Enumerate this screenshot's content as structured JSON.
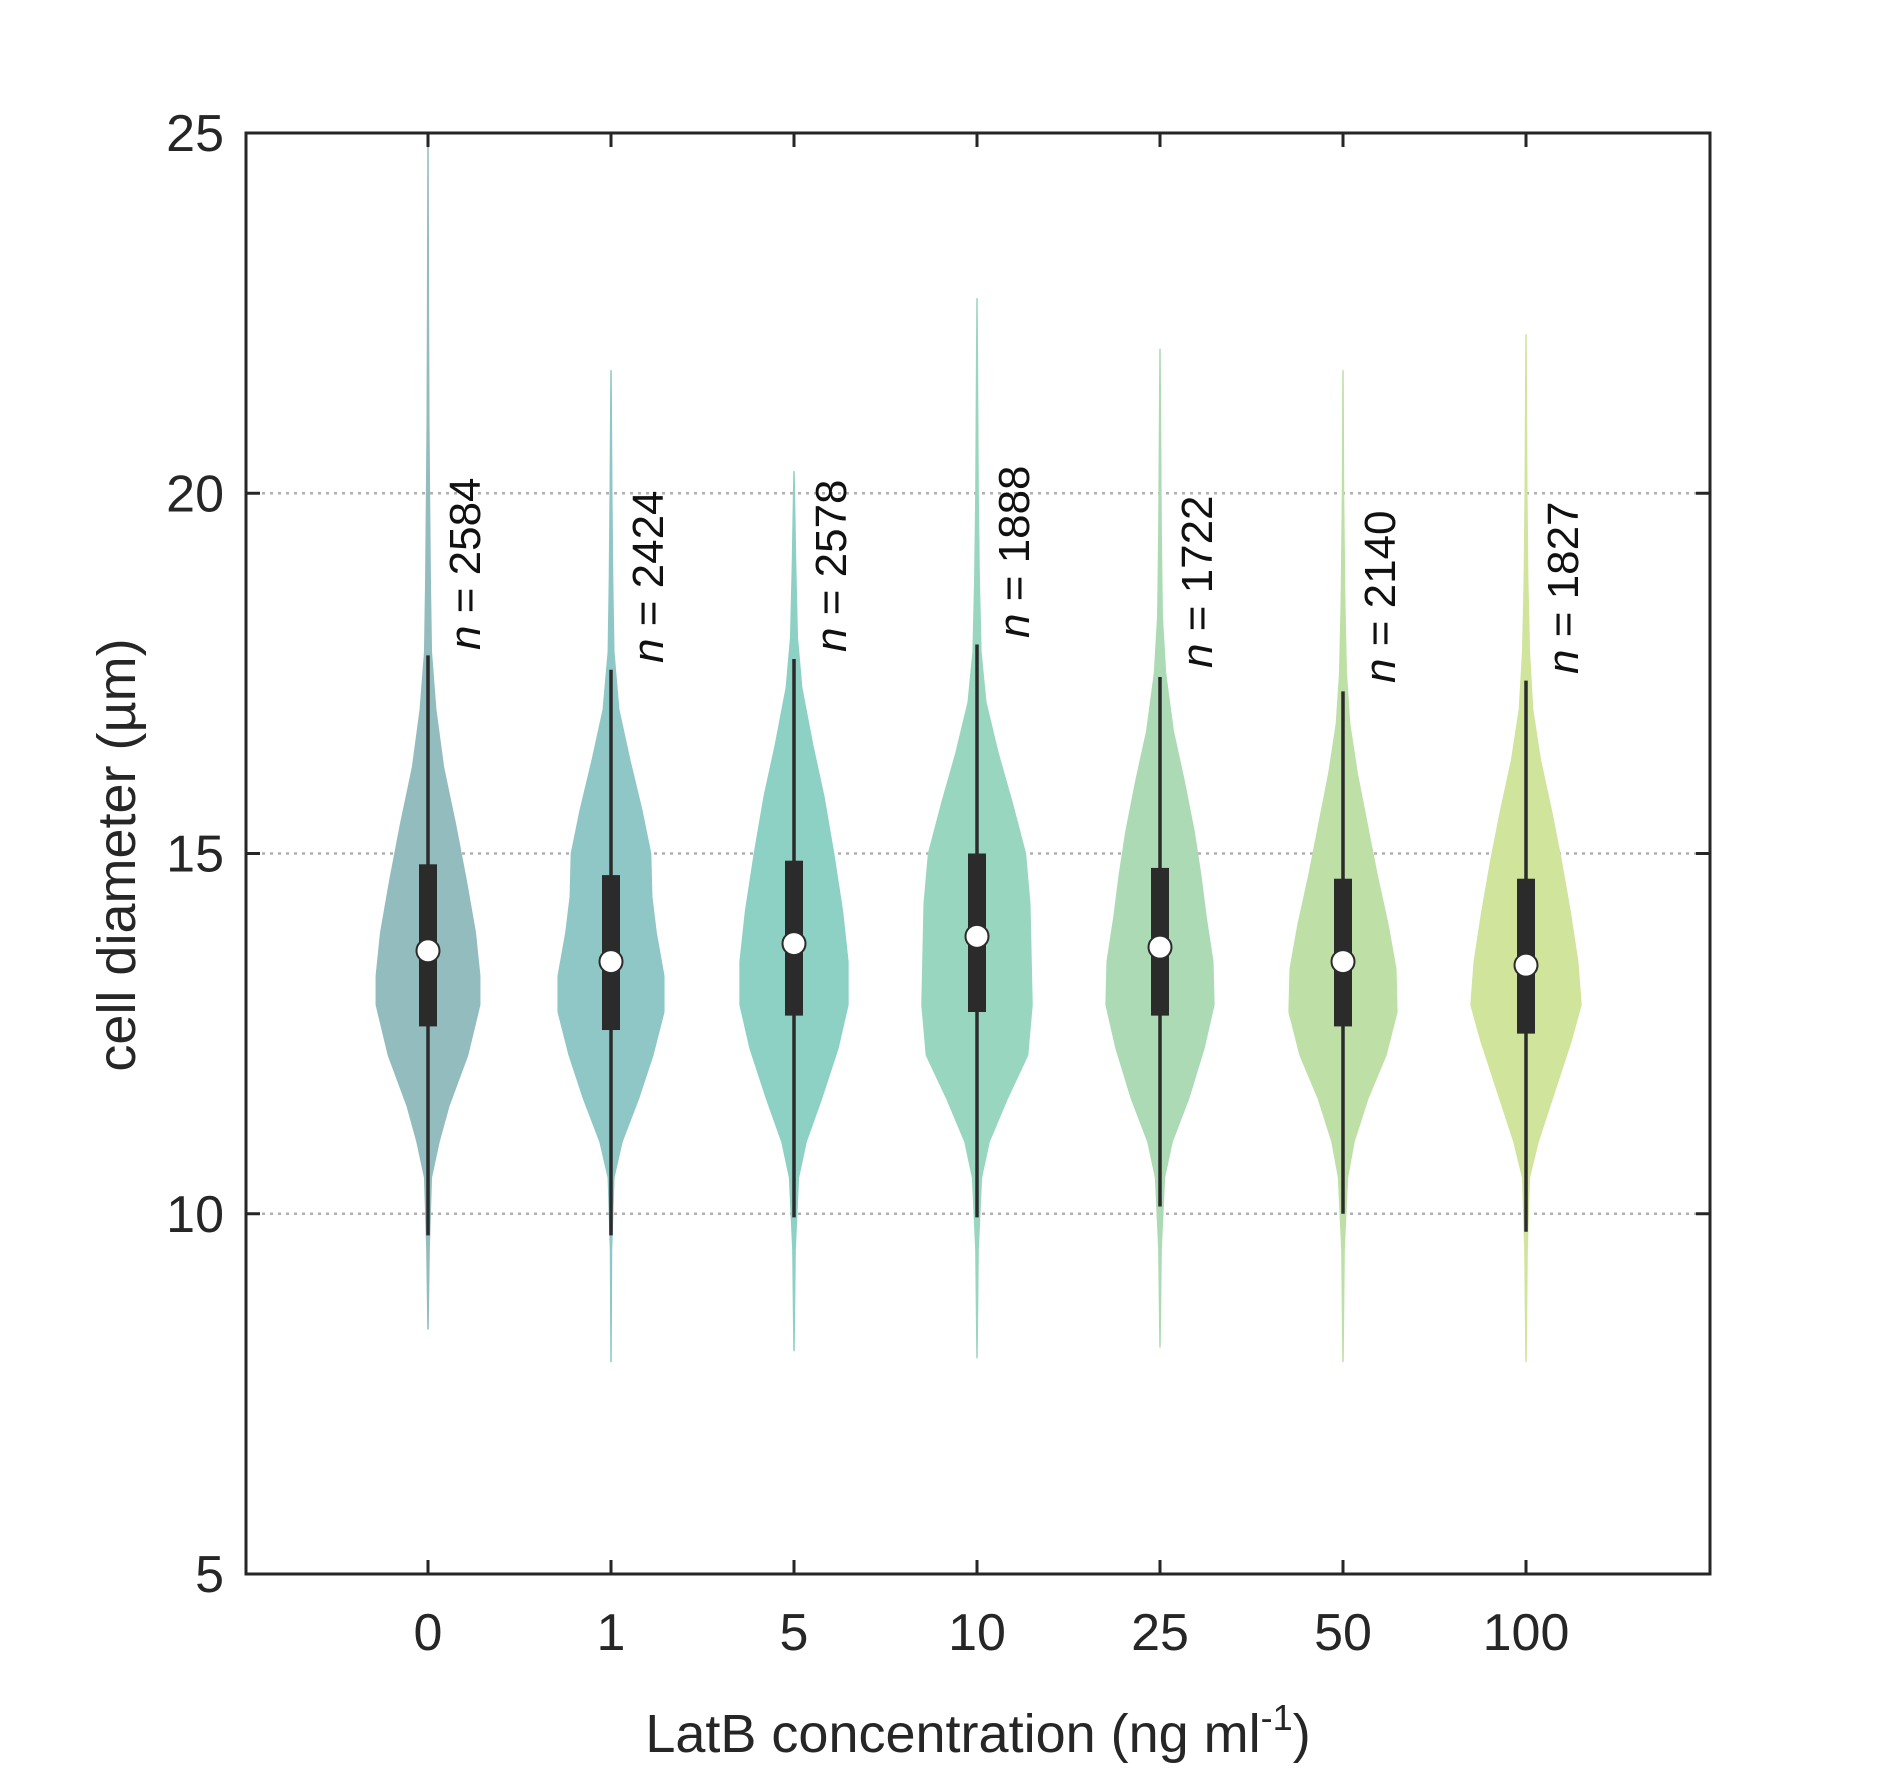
{
  "chart_data": {
    "type": "violin",
    "title": "",
    "xlabel": "LatB concentration (ng ml",
    "xlabel_superscript": "-1",
    "xlabel_suffix": ")",
    "ylabel": "cell diameter (µm)",
    "ylim": [
      5,
      25
    ],
    "yticks": [
      "5",
      "10",
      "15",
      "20",
      "25"
    ],
    "grid": "horizontal dotted at 10, 15, 20",
    "categories": [
      "0",
      "1",
      "5",
      "10",
      "25",
      "50",
      "100"
    ],
    "n_prefix": "n",
    "n_labels": [
      "= 2584",
      "= 2424",
      "= 2578",
      "= 1888",
      "= 1722",
      "= 2140",
      "= 1827"
    ],
    "n_values": [
      2584,
      2424,
      2578,
      1888,
      1722,
      2140,
      1827
    ],
    "colors": [
      "#93bcbf",
      "#8fc7c6",
      "#8dd0c4",
      "#99d6bf",
      "#acdab5",
      "#bedfa6",
      "#d0e49c"
    ],
    "stats": [
      {
        "median": 13.65,
        "q1": 12.6,
        "q3": 14.85,
        "whisker_low": 9.7,
        "whisker_high": 17.75,
        "min": 8.4,
        "max": 24.8
      },
      {
        "median": 13.5,
        "q1": 12.55,
        "q3": 14.7,
        "whisker_low": 9.7,
        "whisker_high": 17.55,
        "min": 7.95,
        "max": 21.7
      },
      {
        "median": 13.75,
        "q1": 12.75,
        "q3": 14.9,
        "whisker_low": 9.95,
        "whisker_high": 17.7,
        "min": 8.1,
        "max": 20.3
      },
      {
        "median": 13.85,
        "q1": 12.8,
        "q3": 15.0,
        "whisker_low": 9.95,
        "whisker_high": 17.9,
        "min": 8.0,
        "max": 22.7
      },
      {
        "median": 13.7,
        "q1": 12.75,
        "q3": 14.8,
        "whisker_low": 10.1,
        "whisker_high": 17.45,
        "min": 8.15,
        "max": 22.0
      },
      {
        "median": 13.5,
        "q1": 12.6,
        "q3": 14.65,
        "whisker_low": 10.0,
        "whisker_high": 17.25,
        "min": 7.95,
        "max": 21.7
      },
      {
        "median": 13.45,
        "q1": 12.5,
        "q3": 14.65,
        "whisker_low": 9.75,
        "whisker_high": 17.4,
        "min": 7.95,
        "max": 22.2
      }
    ],
    "density_profiles": [
      [
        [
          8.4,
          0.0
        ],
        [
          9.5,
          0.02
        ],
        [
          10.5,
          0.06
        ],
        [
          11.0,
          0.2
        ],
        [
          11.5,
          0.38
        ],
        [
          12.2,
          0.72
        ],
        [
          12.9,
          0.94
        ],
        [
          13.3,
          0.94
        ],
        [
          13.9,
          0.86
        ],
        [
          14.6,
          0.7
        ],
        [
          15.4,
          0.5
        ],
        [
          16.2,
          0.28
        ],
        [
          17.0,
          0.14
        ],
        [
          17.8,
          0.06
        ],
        [
          18.8,
          0.04
        ],
        [
          20.0,
          0.025
        ],
        [
          21.0,
          0.015
        ],
        [
          22.5,
          0.008
        ],
        [
          24.8,
          0.0
        ]
      ],
      [
        [
          7.95,
          0.0
        ],
        [
          9.5,
          0.01
        ],
        [
          10.5,
          0.05
        ],
        [
          11.0,
          0.2
        ],
        [
          11.6,
          0.5
        ],
        [
          12.2,
          0.76
        ],
        [
          12.8,
          0.96
        ],
        [
          13.3,
          0.96
        ],
        [
          13.9,
          0.82
        ],
        [
          14.4,
          0.74
        ],
        [
          15.0,
          0.72
        ],
        [
          15.6,
          0.56
        ],
        [
          16.3,
          0.34
        ],
        [
          17.0,
          0.14
        ],
        [
          17.8,
          0.05
        ],
        [
          18.8,
          0.03
        ],
        [
          20.0,
          0.015
        ],
        [
          21.7,
          0.0
        ]
      ],
      [
        [
          8.1,
          0.0
        ],
        [
          9.5,
          0.02
        ],
        [
          10.5,
          0.08
        ],
        [
          11.0,
          0.22
        ],
        [
          11.6,
          0.5
        ],
        [
          12.3,
          0.8
        ],
        [
          12.9,
          0.98
        ],
        [
          13.5,
          0.98
        ],
        [
          14.2,
          0.88
        ],
        [
          15.0,
          0.72
        ],
        [
          15.8,
          0.54
        ],
        [
          16.5,
          0.34
        ],
        [
          17.3,
          0.14
        ],
        [
          18.0,
          0.06
        ],
        [
          19.0,
          0.03
        ],
        [
          20.3,
          0.0
        ]
      ],
      [
        [
          8.0,
          0.0
        ],
        [
          9.5,
          0.02
        ],
        [
          10.5,
          0.08
        ],
        [
          11.0,
          0.22
        ],
        [
          11.6,
          0.55
        ],
        [
          12.2,
          0.92
        ],
        [
          12.9,
          1.0
        ],
        [
          13.6,
          0.98
        ],
        [
          14.3,
          0.96
        ],
        [
          15.0,
          0.88
        ],
        [
          15.7,
          0.64
        ],
        [
          16.4,
          0.38
        ],
        [
          17.1,
          0.16
        ],
        [
          17.8,
          0.07
        ],
        [
          18.8,
          0.04
        ],
        [
          20.0,
          0.02
        ],
        [
          21.5,
          0.01
        ],
        [
          22.7,
          0.0
        ]
      ],
      [
        [
          8.15,
          0.0
        ],
        [
          9.5,
          0.02
        ],
        [
          10.5,
          0.08
        ],
        [
          11.0,
          0.22
        ],
        [
          11.6,
          0.52
        ],
        [
          12.3,
          0.8
        ],
        [
          12.9,
          0.98
        ],
        [
          13.5,
          0.96
        ],
        [
          14.1,
          0.84
        ],
        [
          14.7,
          0.74
        ],
        [
          15.3,
          0.62
        ],
        [
          16.0,
          0.44
        ],
        [
          16.7,
          0.24
        ],
        [
          17.5,
          0.1
        ],
        [
          18.3,
          0.04
        ],
        [
          19.5,
          0.02
        ],
        [
          22.0,
          0.0
        ]
      ],
      [
        [
          7.95,
          0.0
        ],
        [
          9.5,
          0.02
        ],
        [
          10.5,
          0.08
        ],
        [
          11.0,
          0.2
        ],
        [
          11.6,
          0.45
        ],
        [
          12.2,
          0.78
        ],
        [
          12.8,
          0.98
        ],
        [
          13.4,
          0.96
        ],
        [
          14.0,
          0.82
        ],
        [
          14.7,
          0.62
        ],
        [
          15.4,
          0.44
        ],
        [
          16.1,
          0.26
        ],
        [
          16.8,
          0.12
        ],
        [
          17.5,
          0.06
        ],
        [
          18.5,
          0.03
        ],
        [
          20.0,
          0.01
        ],
        [
          21.7,
          0.0
        ]
      ],
      [
        [
          7.95,
          0.0
        ],
        [
          9.5,
          0.02
        ],
        [
          10.5,
          0.06
        ],
        [
          11.0,
          0.22
        ],
        [
          11.7,
          0.52
        ],
        [
          12.4,
          0.82
        ],
        [
          12.9,
          1.0
        ],
        [
          13.5,
          0.94
        ],
        [
          14.2,
          0.8
        ],
        [
          14.9,
          0.64
        ],
        [
          15.6,
          0.46
        ],
        [
          16.3,
          0.26
        ],
        [
          17.0,
          0.12
        ],
        [
          17.8,
          0.06
        ],
        [
          18.8,
          0.03
        ],
        [
          20.0,
          0.015
        ],
        [
          22.2,
          0.0
        ]
      ]
    ]
  }
}
